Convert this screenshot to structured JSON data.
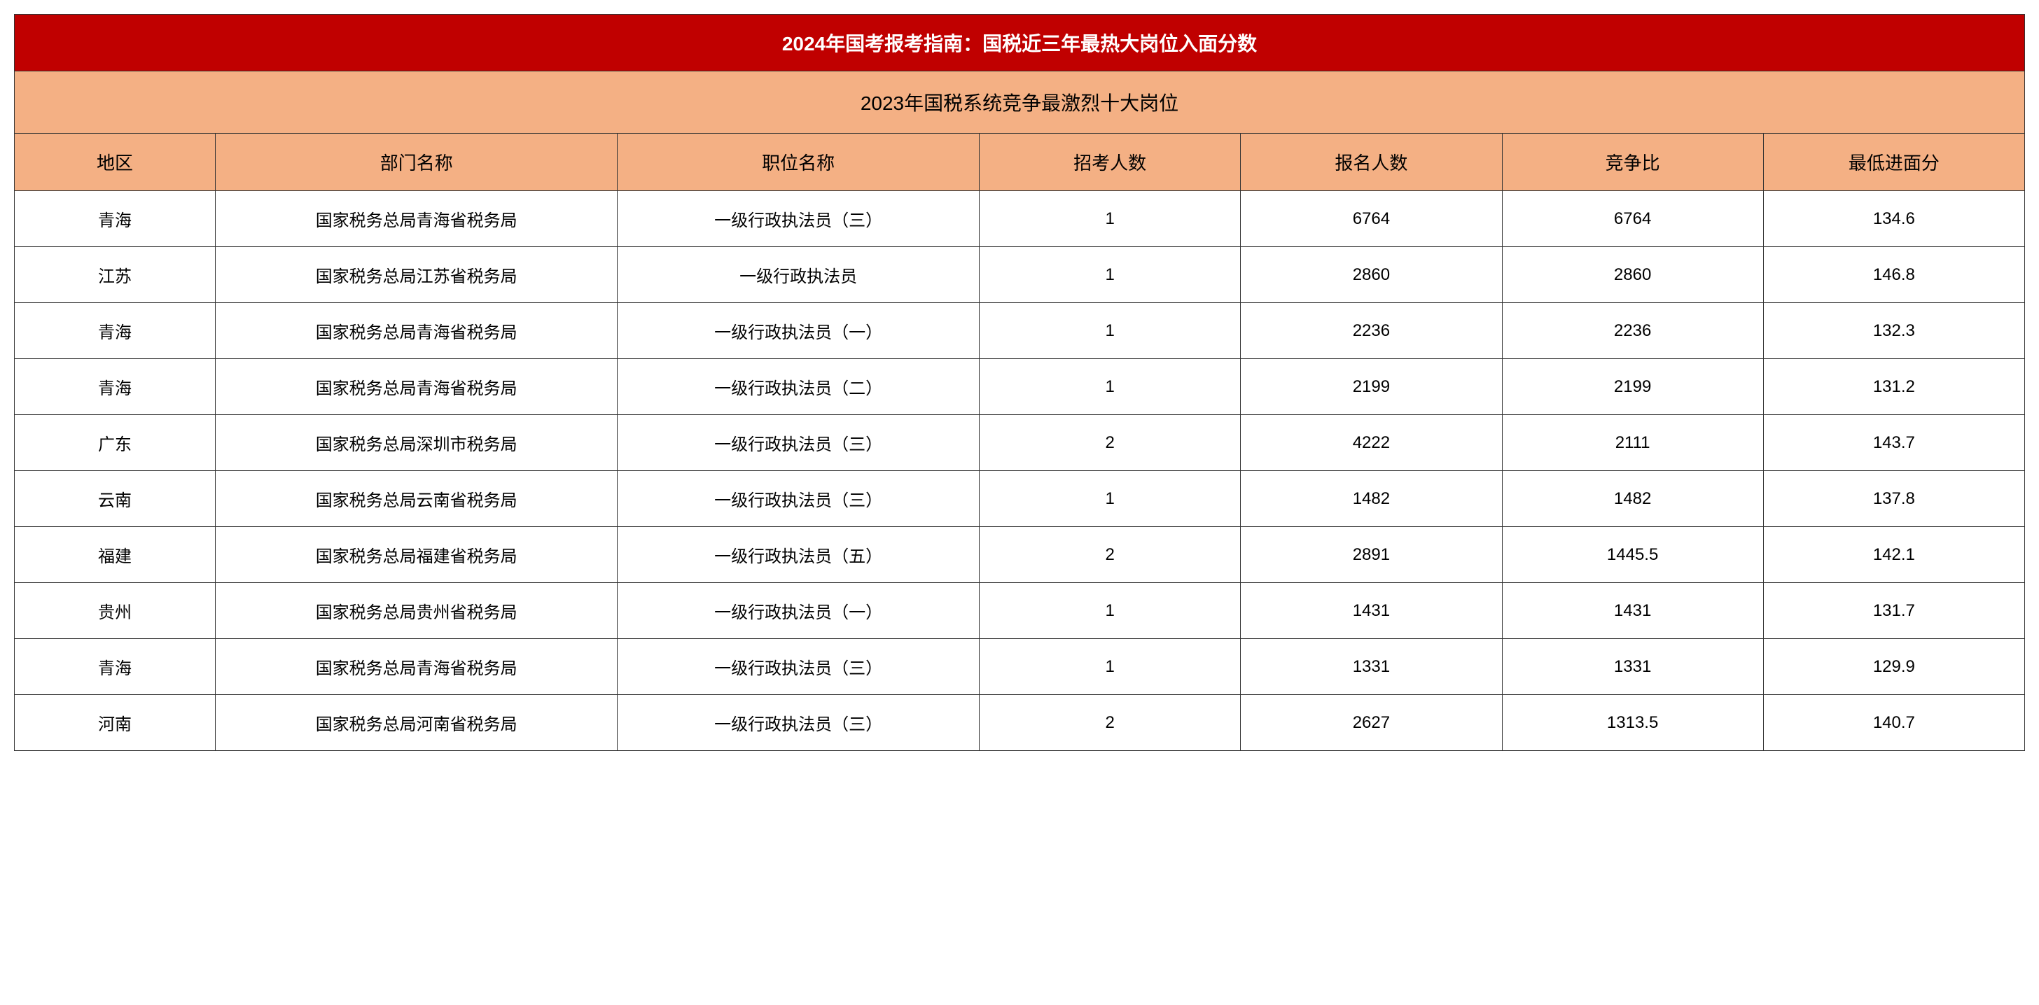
{
  "title": "2024年国考报考指南：国税近三年最热大岗位入面分数",
  "subtitle": "2023年国税系统竞争最激烈十大岗位",
  "colors": {
    "title_bg": "#c00000",
    "title_text": "#ffffff",
    "header_bg": "#f4b084",
    "header_text": "#000000",
    "cell_bg": "#ffffff",
    "cell_text": "#000000",
    "border": "#333333"
  },
  "typography": {
    "title_fontsize": 28,
    "subtitle_fontsize": 28,
    "header_fontsize": 26,
    "data_fontsize": 24,
    "title_weight": "bold"
  },
  "columns": [
    {
      "label": "地区",
      "width": "10%"
    },
    {
      "label": "部门名称",
      "width": "20%"
    },
    {
      "label": "职位名称",
      "width": "18%"
    },
    {
      "label": "招考人数",
      "width": "13%"
    },
    {
      "label": "报名人数",
      "width": "13%"
    },
    {
      "label": "竞争比",
      "width": "13%"
    },
    {
      "label": "最低进面分",
      "width": "13%"
    }
  ],
  "rows": [
    {
      "region": "青海",
      "dept": "国家税务总局青海省税务局",
      "position": "一级行政执法员（三）",
      "recruit": "1",
      "applicants": "6764",
      "ratio": "6764",
      "score": "134.6"
    },
    {
      "region": "江苏",
      "dept": "国家税务总局江苏省税务局",
      "position": "一级行政执法员",
      "recruit": "1",
      "applicants": "2860",
      "ratio": "2860",
      "score": "146.8"
    },
    {
      "region": "青海",
      "dept": "国家税务总局青海省税务局",
      "position": "一级行政执法员（一）",
      "recruit": "1",
      "applicants": "2236",
      "ratio": "2236",
      "score": "132.3"
    },
    {
      "region": "青海",
      "dept": "国家税务总局青海省税务局",
      "position": "一级行政执法员（二）",
      "recruit": "1",
      "applicants": "2199",
      "ratio": "2199",
      "score": "131.2"
    },
    {
      "region": "广东",
      "dept": "国家税务总局深圳市税务局",
      "position": "一级行政执法员（三）",
      "recruit": "2",
      "applicants": "4222",
      "ratio": "2111",
      "score": "143.7"
    },
    {
      "region": "云南",
      "dept": "国家税务总局云南省税务局",
      "position": "一级行政执法员（三）",
      "recruit": "1",
      "applicants": "1482",
      "ratio": "1482",
      "score": "137.8"
    },
    {
      "region": "福建",
      "dept": "国家税务总局福建省税务局",
      "position": "一级行政执法员（五）",
      "recruit": "2",
      "applicants": "2891",
      "ratio": "1445.5",
      "score": "142.1"
    },
    {
      "region": "贵州",
      "dept": "国家税务总局贵州省税务局",
      "position": "一级行政执法员（一）",
      "recruit": "1",
      "applicants": "1431",
      "ratio": "1431",
      "score": "131.7"
    },
    {
      "region": "青海",
      "dept": "国家税务总局青海省税务局",
      "position": "一级行政执法员（三）",
      "recruit": "1",
      "applicants": "1331",
      "ratio": "1331",
      "score": "129.9"
    },
    {
      "region": "河南",
      "dept": "国家税务总局河南省税务局",
      "position": "一级行政执法员（三）",
      "recruit": "2",
      "applicants": "2627",
      "ratio": "1313.5",
      "score": "140.7"
    }
  ]
}
